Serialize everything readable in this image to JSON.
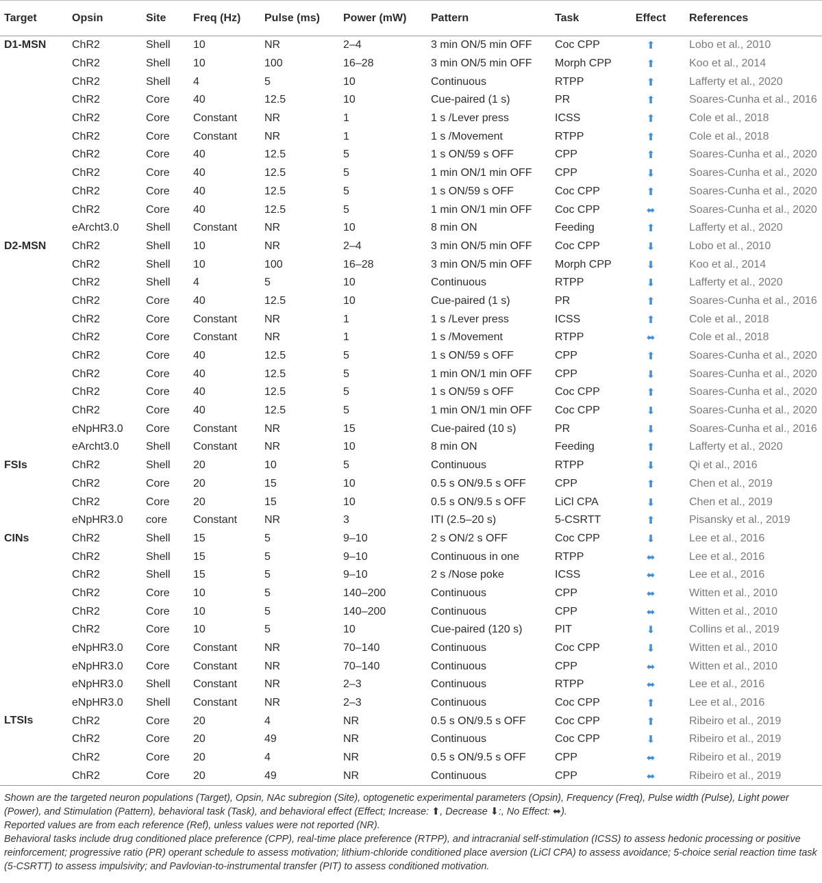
{
  "table": {
    "header": [
      "Target",
      "Opsin",
      "Site",
      "Freq (Hz)",
      "Pulse (ms)",
      "Power (mW)",
      "Pattern",
      "Task",
      "Effect",
      "References"
    ],
    "groups": [
      {
        "target": "D1-MSN",
        "rows": [
          [
            "ChR2",
            "Shell",
            "10",
            "NR",
            "2–4",
            "3 min ON/5 min OFF",
            "Coc CPP",
            "⬆",
            "Lobo et al., 2010"
          ],
          [
            "ChR2",
            "Shell",
            "10",
            "100",
            "16–28",
            "3 min ON/5 min OFF",
            "Morph CPP",
            "⬆",
            "Koo et al., 2014"
          ],
          [
            "ChR2",
            "Shell",
            "4",
            "5",
            "10",
            "Continuous",
            "RTPP",
            "⬆",
            "Lafferty et al., 2020"
          ],
          [
            "ChR2",
            "Core",
            "40",
            "12.5",
            "10",
            "Cue-paired (1 s)",
            "PR",
            "⬆",
            "Soares-Cunha et al., 2016"
          ],
          [
            "ChR2",
            "Core",
            "Constant",
            "NR",
            "1",
            "1 s /Lever press",
            "ICSS",
            "⬆",
            "Cole et al., 2018"
          ],
          [
            "ChR2",
            "Core",
            "Constant",
            "NR",
            "1",
            "1 s /Movement",
            "RTPP",
            "⬆",
            "Cole et al., 2018"
          ],
          [
            "ChR2",
            "Core",
            "40",
            "12.5",
            "5",
            "1 s ON/59 s OFF",
            "CPP",
            "⬆",
            "Soares-Cunha et al., 2020"
          ],
          [
            "ChR2",
            "Core",
            "40",
            "12.5",
            "5",
            "1 min ON/1 min OFF",
            "CPP",
            "⬇",
            "Soares-Cunha et al., 2020"
          ],
          [
            "ChR2",
            "Core",
            "40",
            "12.5",
            "5",
            "1 s ON/59 s OFF",
            "Coc CPP",
            "⬆",
            "Soares-Cunha et al., 2020"
          ],
          [
            "ChR2",
            "Core",
            "40",
            "12.5",
            "5",
            "1 min ON/1 min OFF",
            "Coc CPP",
            "⬌",
            "Soares-Cunha et al., 2020"
          ],
          [
            "eArcht3.0",
            "Shell",
            "Constant",
            "NR",
            "10",
            "8 min ON",
            "Feeding",
            "⬆",
            "Lafferty et al., 2020"
          ]
        ]
      },
      {
        "target": "D2-MSN",
        "rows": [
          [
            "ChR2",
            "Shell",
            "10",
            "NR",
            "2–4",
            "3 min ON/5 min OFF",
            "Coc CPP",
            "⬇",
            "Lobo et al., 2010"
          ],
          [
            "ChR2",
            "Shell",
            "10",
            "100",
            "16–28",
            "3 min ON/5 min OFF",
            "Morph CPP",
            "⬇",
            "Koo et al., 2014"
          ],
          [
            "ChR2",
            "Shell",
            "4",
            "5",
            "10",
            "Continuous",
            "RTPP",
            "⬇",
            "Lafferty et al., 2020"
          ],
          [
            "ChR2",
            "Core",
            "40",
            "12.5",
            "10",
            "Cue-paired (1 s)",
            "PR",
            "⬆",
            "Soares-Cunha et al., 2016"
          ],
          [
            "ChR2",
            "Core",
            "Constant",
            "NR",
            "1",
            "1 s /Lever press",
            "ICSS",
            "⬆",
            "Cole et al., 2018"
          ],
          [
            "ChR2",
            "Core",
            "Constant",
            "NR",
            "1",
            "1 s /Movement",
            "RTPP",
            "⬌",
            "Cole et al., 2018"
          ],
          [
            "ChR2",
            "Core",
            "40",
            "12.5",
            "5",
            "1 s ON/59 s OFF",
            "CPP",
            "⬆",
            "Soares-Cunha et al., 2020"
          ],
          [
            "ChR2",
            "Core",
            "40",
            "12.5",
            "5",
            "1 min ON/1 min OFF",
            "CPP",
            "⬇",
            "Soares-Cunha et al., 2020"
          ],
          [
            "ChR2",
            "Core",
            "40",
            "12.5",
            "5",
            "1 s ON/59 s OFF",
            "Coc CPP",
            "⬆",
            "Soares-Cunha et al., 2020"
          ],
          [
            "ChR2",
            "Core",
            "40",
            "12.5",
            "5",
            "1 min ON/1 min OFF",
            "Coc CPP",
            "⬇",
            "Soares-Cunha et al., 2020"
          ],
          [
            "eNpHR3.0",
            "Core",
            "Constant",
            "NR",
            "15",
            "Cue-paired (10 s)",
            "PR",
            "⬇",
            "Soares-Cunha et al., 2016"
          ],
          [
            "eArcht3.0",
            "Shell",
            "Constant",
            "NR",
            "10",
            "8 min ON",
            "Feeding",
            "⬆",
            "Lafferty et al., 2020"
          ]
        ]
      },
      {
        "target": "FSIs",
        "rows": [
          [
            "ChR2",
            "Shell",
            "20",
            "10",
            "5",
            "Continuous",
            "RTPP",
            "⬇",
            "Qi et al., 2016"
          ],
          [
            "ChR2",
            "Core",
            "20",
            "15",
            "10",
            "0.5 s ON/9.5 s OFF",
            "CPP",
            "⬆",
            "Chen et al., 2019"
          ],
          [
            "ChR2",
            "Core",
            "20",
            "15",
            "10",
            "0.5 s ON/9.5 s OFF",
            "LiCl CPA",
            "⬇",
            "Chen et al., 2019"
          ],
          [
            "eNpHR3.0",
            "core",
            "Constant",
            "NR",
            "3",
            "ITI (2.5–20 s)",
            "5-CSRTT",
            "⬆",
            "Pisansky et al., 2019"
          ]
        ]
      },
      {
        "target": "CINs",
        "rows": [
          [
            "ChR2",
            "Shell",
            "15",
            "5",
            "9–10",
            "2 s ON/2 s OFF",
            "Coc CPP",
            "⬇",
            "Lee et al., 2016"
          ],
          [
            "ChR2",
            "Shell",
            "15",
            "5",
            "9–10",
            "Continuous in one",
            "RTPP",
            "⬌",
            "Lee et al., 2016"
          ],
          [
            "ChR2",
            "Shell",
            "15",
            "5",
            "9–10",
            "2 s /Nose poke",
            "ICSS",
            "⬌",
            "Lee et al., 2016"
          ],
          [
            "ChR2",
            "Core",
            "10",
            "5",
            "140–200",
            "Continuous",
            "CPP",
            "⬌",
            "Witten et al., 2010"
          ],
          [
            "ChR2",
            "Core",
            "10",
            "5",
            "140–200",
            "Continuous",
            "CPP",
            "⬌",
            "Witten et al., 2010"
          ],
          [
            "ChR2",
            "Core",
            "10",
            "5",
            "10",
            "Cue-paired (120 s)",
            "PIT",
            "⬇",
            "Collins et al., 2019"
          ],
          [
            "eNpHR3.0",
            "Core",
            "Constant",
            "NR",
            "70–140",
            "Continuous",
            "Coc CPP",
            "⬇",
            "Witten et al., 2010"
          ],
          [
            "eNpHR3.0",
            "Core",
            "Constant",
            "NR",
            "70–140",
            "Continuous",
            "CPP",
            "⬌",
            "Witten et al., 2010"
          ],
          [
            "eNpHR3.0",
            "Shell",
            "Constant",
            "NR",
            "2–3",
            "Continuous",
            "RTPP",
            "⬌",
            "Lee et al., 2016"
          ],
          [
            "eNpHR3.0",
            "Shell",
            "Constant",
            "NR",
            "2–3",
            "Continuous",
            "Coc CPP",
            "⬆",
            "Lee et al., 2016"
          ]
        ]
      },
      {
        "target": "LTSIs",
        "rows": [
          [
            "ChR2",
            "Core",
            "20",
            "4",
            "NR",
            "0.5 s ON/9.5 s OFF",
            "Coc CPP",
            "⬆",
            "Ribeiro et al., 2019"
          ],
          [
            "ChR2",
            "Core",
            "20",
            "49",
            "NR",
            "Continuous",
            "Coc CPP",
            "⬇",
            "Ribeiro et al., 2019"
          ],
          [
            "ChR2",
            "Core",
            "20",
            "4",
            "NR",
            "0.5 s ON/9.5 s OFF",
            "CPP",
            "⬌",
            "Ribeiro et al., 2019"
          ],
          [
            "ChR2",
            "Core",
            "20",
            "49",
            "NR",
            "Continuous",
            "CPP",
            "⬌",
            "Ribeiro et al., 2019"
          ]
        ]
      }
    ]
  },
  "notes": [
    "Shown are the targeted neuron populations (Target), Opsin, NAc subregion (Site), optogenetic experimental parameters (Opsin), Frequency (Freq), Pulse width (Pulse), Light power (Power), and Stimulation (Pattern), behavioral task (Task), and behavioral effect (Effect; Increase: ⬆, Decrease ⬇:, No Effect: ⬌).",
    "Reported values are from each reference (Ref), unless values were not reported (NR).",
    "Behavioral tasks include drug conditioned place preference (CPP), real-time place preference (RTPP), and intracranial self-stimulation (ICSS) to assess hedonic processing or positive reinforcement; progressive ratio (PR) operant schedule to assess motivation; lithium-chloride conditioned place aversion (LiCl CPA) to assess avoidance; 5-choice serial reaction time task (5-CSRTT) to assess impulsivity; and Pavlovian-to-instrumental transfer (PIT) to assess conditioned motivation."
  ]
}
